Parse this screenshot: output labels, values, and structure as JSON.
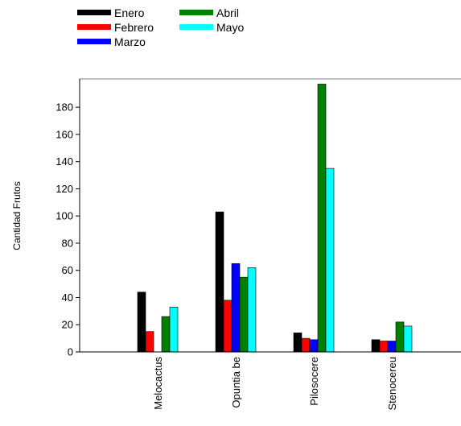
{
  "chart_data": {
    "type": "bar",
    "title": "",
    "xlabel": "",
    "ylabel": "Cantidad Frutos",
    "categories": [
      "Melocactus",
      "Opuntia be",
      "Pilosocere",
      "Stenocereu"
    ],
    "series": [
      {
        "name": "Enero",
        "color": "#000000",
        "values": [
          44,
          103,
          14,
          9
        ]
      },
      {
        "name": "Febrero",
        "color": "#ff0000",
        "values": [
          15,
          38,
          10,
          8
        ]
      },
      {
        "name": "Marzo",
        "color": "#0000ff",
        "values": [
          0,
          65,
          9,
          8
        ]
      },
      {
        "name": "Abril",
        "color": "#008000",
        "values": [
          26,
          55,
          197,
          22
        ]
      },
      {
        "name": "Mayo",
        "color": "#00ffff",
        "values": [
          33,
          62,
          135,
          19
        ]
      }
    ],
    "ylim": [
      0,
      198
    ],
    "yticks": [
      0,
      20,
      40,
      60,
      80,
      100,
      120,
      140,
      160,
      180
    ],
    "grid": false,
    "legend_position": "top-left"
  }
}
